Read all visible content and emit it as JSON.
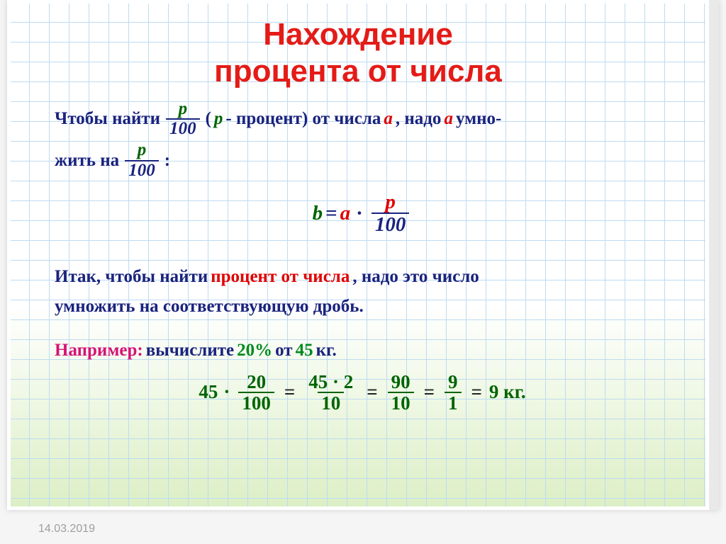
{
  "title_line1": "Нахождение",
  "title_line2": "процента от числа",
  "para1": {
    "t1": "Чтобы найти ",
    "frac1": {
      "num": "p",
      "den": "100"
    },
    "t2": " (",
    "p": "p",
    "t3": " - процент) от числа ",
    "a": "a",
    "t4": ", надо ",
    "a2": "a",
    "t5": " умно-",
    "t6": "жить на ",
    "frac2": {
      "num": "p",
      "den": "100"
    },
    "t7": " :"
  },
  "formula": {
    "b": "b",
    "eq": " = ",
    "a": "a",
    "dot": " · ",
    "frac": {
      "num": "p",
      "den": "100"
    }
  },
  "rule": {
    "t1": "Итак, чтобы найти ",
    "t2": "процент от числа",
    "t3": ", надо это число",
    "t4": "умножить на соответствующую дробь."
  },
  "example": {
    "t1": "Например:",
    "t2": "  вычислите ",
    "v1": "20%",
    "t3": " от ",
    "v2": "45",
    "t4": " кг."
  },
  "calc": {
    "c1": "45",
    "dot": " · ",
    "f1": {
      "num": "20",
      "den": "100"
    },
    "eq": " = ",
    "f2": {
      "num": "45 · 2",
      "den": "10"
    },
    "f3": {
      "num": "90",
      "den": "10"
    },
    "f4": {
      "num": "9",
      "den": "1"
    },
    "res": "9 кг."
  },
  "date": "14.03.2019",
  "colors": {
    "title": "#e41b17",
    "body": "#1a237e",
    "red": "#e00000",
    "green": "#008a1e",
    "greendark": "#006400",
    "pink": "#d61377",
    "grid": "#bedbf1",
    "date": "#9e9e9e"
  }
}
